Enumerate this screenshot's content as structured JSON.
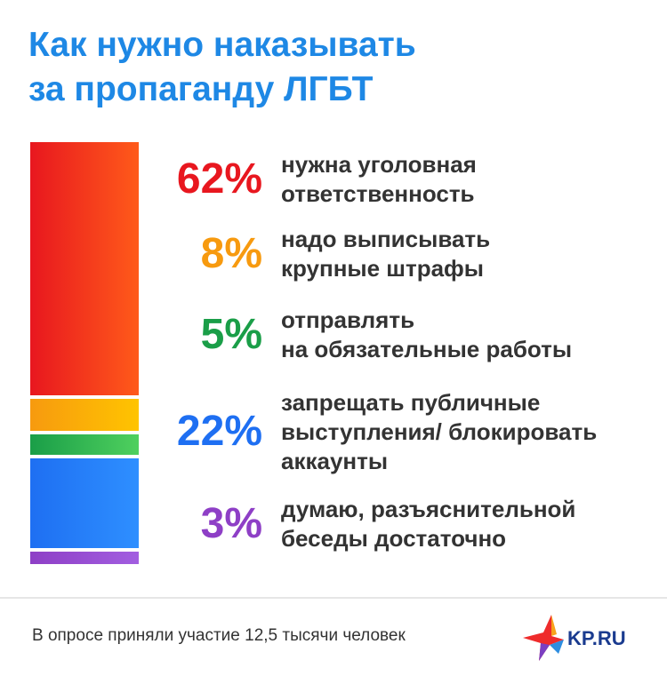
{
  "title": {
    "line1": "Как нужно наказывать",
    "line2": "за пропаганду ЛГБТ"
  },
  "chart_data": {
    "type": "bar",
    "stacked": true,
    "legend": "none",
    "grid": false,
    "series": [
      {
        "value": 62,
        "label": "62%",
        "text": [
          "нужна уголовная",
          "ответственность"
        ],
        "color": "#e8171f",
        "color2": "#ff5a1a"
      },
      {
        "value": 8,
        "label": "8%",
        "text": [
          "надо выписывать",
          "крупные штрафы"
        ],
        "color": "#f79a0f",
        "color2": "#ffc400"
      },
      {
        "value": 5,
        "label": "5%",
        "text": [
          "отправлять",
          "на обязательные работы"
        ],
        "color": "#1a9e48",
        "color2": "#4fd05e"
      },
      {
        "value": 22,
        "label": "22%",
        "text": [
          "запрещать публичные",
          "выступления/ блокировать",
          "аккаунты"
        ],
        "color": "#1e6ff2",
        "color2": "#2e8fff"
      },
      {
        "value": 3,
        "label": "3%",
        "text": [
          "думаю, разъяснительной",
          "беседы достаточно"
        ],
        "color": "#8e3fc6",
        "color2": "#a25ee0"
      }
    ]
  },
  "footer": {
    "note": "В опросе приняли участие 12,5 тысячи человек",
    "brand": "KP.RU"
  }
}
